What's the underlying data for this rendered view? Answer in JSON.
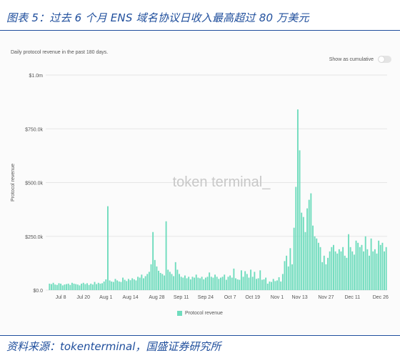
{
  "header": {
    "title": "图表 5：过去 6 个月 ENS 域名协议日收入最高超过 80 万美元"
  },
  "panel": {
    "subtitle": "Daily protocol revenue in the past 180 days.",
    "toggle_label": "Show as cumulative",
    "toggle_on": false,
    "watermark": "token terminal_"
  },
  "footer": {
    "source": "资料来源：tokenterminal，国盛证券研究所"
  },
  "colors": {
    "bar": "#6fdcbd",
    "title_blue": "#1f4e9c",
    "grid": "#e6e6e6",
    "axis_text": "#555555"
  },
  "chart_data": {
    "type": "bar",
    "title": "Daily protocol revenue in the past 180 days.",
    "ylabel": "Protocol revenue",
    "xlabel": "",
    "ylim": [
      0,
      1000000
    ],
    "yticks": [
      {
        "value": 0,
        "label": "$0.0"
      },
      {
        "value": 250000,
        "label": "$250.0k"
      },
      {
        "value": 500000,
        "label": "$500.0k"
      },
      {
        "value": 750000,
        "label": "$750.0k"
      },
      {
        "value": 1000000,
        "label": "$1.0m"
      }
    ],
    "xticks": [
      {
        "index": 6,
        "label": "Jul 8"
      },
      {
        "index": 18,
        "label": "Jul 20"
      },
      {
        "index": 30,
        "label": "Aug 1"
      },
      {
        "index": 43,
        "label": "Aug 14"
      },
      {
        "index": 57,
        "label": "Aug 28"
      },
      {
        "index": 70,
        "label": "Sep 11"
      },
      {
        "index": 83,
        "label": "Sep 24"
      },
      {
        "index": 96,
        "label": "Oct 7"
      },
      {
        "index": 108,
        "label": "Oct 19"
      },
      {
        "index": 121,
        "label": "Nov 1"
      },
      {
        "index": 133,
        "label": "Nov 13"
      },
      {
        "index": 147,
        "label": "Nov 27"
      },
      {
        "index": 161,
        "label": "Dec 11"
      },
      {
        "index": 176,
        "label": "Dec 26"
      }
    ],
    "legend": [
      {
        "name": "Protocol revenue",
        "color": "#6fdcbd"
      }
    ],
    "legend_position": "bottom-center",
    "grid": true,
    "series": [
      {
        "name": "Protocol revenue",
        "values": [
          30000,
          28000,
          34000,
          26000,
          24000,
          32000,
          30000,
          22000,
          26000,
          28000,
          30000,
          24000,
          34000,
          30000,
          28000,
          26000,
          22000,
          30000,
          34000,
          28000,
          32000,
          24000,
          30000,
          26000,
          38000,
          28000,
          34000,
          30000,
          32000,
          40000,
          50000,
          390000,
          45000,
          40000,
          38000,
          52000,
          45000,
          40000,
          38000,
          58000,
          48000,
          42000,
          52000,
          46000,
          55000,
          50000,
          45000,
          62000,
          58000,
          72000,
          55000,
          65000,
          75000,
          85000,
          120000,
          270000,
          140000,
          110000,
          90000,
          80000,
          75000,
          68000,
          320000,
          95000,
          85000,
          75000,
          65000,
          130000,
          95000,
          75000,
          62000,
          58000,
          68000,
          55000,
          62000,
          50000,
          62000,
          58000,
          72000,
          58000,
          55000,
          62000,
          50000,
          58000,
          62000,
          82000,
          62000,
          58000,
          72000,
          62000,
          52000,
          58000,
          62000,
          72000,
          48000,
          62000,
          68000,
          58000,
          100000,
          55000,
          50000,
          48000,
          92000,
          62000,
          88000,
          75000,
          58000,
          95000,
          62000,
          85000,
          52000,
          55000,
          92000,
          48000,
          50000,
          58000,
          30000,
          40000,
          38000,
          52000,
          42000,
          45000,
          60000,
          40000,
          75000,
          135000,
          160000,
          110000,
          195000,
          120000,
          290000,
          480000,
          840000,
          650000,
          360000,
          340000,
          270000,
          380000,
          420000,
          450000,
          300000,
          250000,
          240000,
          220000,
          200000,
          130000,
          160000,
          120000,
          150000,
          180000,
          200000,
          210000,
          180000,
          170000,
          190000,
          180000,
          200000,
          160000,
          150000,
          260000,
          200000,
          180000,
          165000,
          230000,
          220000,
          200000,
          210000,
          180000,
          250000,
          190000,
          160000,
          240000,
          180000,
          190000,
          170000,
          230000,
          210000,
          220000,
          180000,
          200000
        ]
      }
    ]
  }
}
